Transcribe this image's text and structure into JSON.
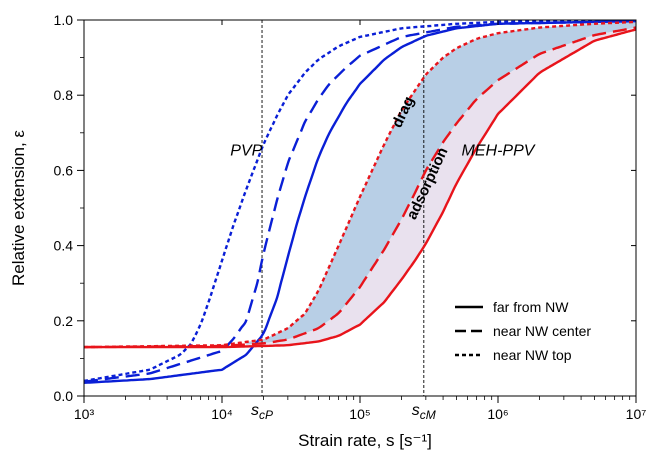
{
  "chart_data": {
    "type": "line",
    "xlabel": "Strain rate, s [s⁻¹]",
    "ylabel": "Relative extension, ε",
    "xscale": "log",
    "xlim": [
      1000,
      10000000
    ],
    "ylim": [
      0.0,
      1.0
    ],
    "x_ticks": [
      "10³",
      "10⁴",
      "10⁵",
      "10⁶",
      "10⁷"
    ],
    "y_ticks": [
      "0.0",
      "0.2",
      "0.4",
      "0.6",
      "0.8",
      "1.0"
    ],
    "grid": false,
    "legend_placement": "bottom-right",
    "legend": [
      {
        "label": "far from NW",
        "dash": "solid"
      },
      {
        "label": "near NW center",
        "dash": "dashed"
      },
      {
        "label": "near NW top",
        "dash": "dotted"
      }
    ],
    "region_labels": [
      {
        "text": "PVP",
        "x": 15000,
        "y": 0.64
      },
      {
        "text": "MEH-PPV",
        "x": 1000000,
        "y": 0.64
      }
    ],
    "band_labels": [
      {
        "text": "drag",
        "x": 220000,
        "y": 0.75
      },
      {
        "text": "adsorption",
        "x": 330000,
        "y": 0.56
      }
    ],
    "vertical_markers": [
      {
        "label": "s_cP",
        "base": "s",
        "sub": "cP",
        "x": 19500
      },
      {
        "label": "s_cM",
        "base": "s",
        "sub": "cM",
        "x": 290000
      }
    ],
    "colors": {
      "PVP": "#0a1fd6",
      "MEH-PPV": "#e8141b",
      "band_drag": "#b8cfe6",
      "band_adsorption": "#e9e1ee"
    },
    "series": [
      {
        "group": "PVP",
        "style": "solid",
        "color": "#0a1fd6",
        "x": [
          1000,
          3000,
          10000,
          15000,
          20000,
          25000,
          30000,
          35000,
          40000,
          50000,
          60000,
          80000,
          100000,
          150000,
          200000,
          300000,
          500000,
          1000000,
          10000000
        ],
        "y": [
          0.035,
          0.045,
          0.07,
          0.11,
          0.165,
          0.26,
          0.37,
          0.46,
          0.53,
          0.635,
          0.7,
          0.78,
          0.83,
          0.895,
          0.928,
          0.958,
          0.978,
          0.99,
          0.997
        ]
      },
      {
        "group": "PVP",
        "style": "dashed",
        "color": "#0a1fd6",
        "x": [
          1000,
          3000,
          10000,
          12000,
          15000,
          18000,
          20000,
          25000,
          30000,
          40000,
          50000,
          60000,
          80000,
          100000,
          200000,
          500000,
          1000000,
          10000000
        ],
        "y": [
          0.038,
          0.06,
          0.12,
          0.15,
          0.2,
          0.3,
          0.38,
          0.52,
          0.62,
          0.73,
          0.79,
          0.83,
          0.875,
          0.905,
          0.955,
          0.982,
          0.99,
          0.997
        ]
      },
      {
        "group": "PVP",
        "style": "dotted",
        "color": "#0a1fd6",
        "x": [
          1000,
          3000,
          5000,
          6000,
          7000,
          8000,
          10000,
          12000,
          15000,
          20000,
          25000,
          30000,
          40000,
          50000,
          70000,
          100000,
          200000,
          500000,
          1000000,
          10000000
        ],
        "y": [
          0.04,
          0.07,
          0.11,
          0.14,
          0.19,
          0.25,
          0.36,
          0.45,
          0.55,
          0.67,
          0.745,
          0.8,
          0.86,
          0.895,
          0.93,
          0.955,
          0.978,
          0.99,
          0.995,
          0.998
        ]
      },
      {
        "group": "MEH-PPV",
        "style": "solid",
        "color": "#e8141b",
        "x": [
          1000,
          10000,
          30000,
          50000,
          70000,
          100000,
          150000,
          200000,
          250000,
          300000,
          400000,
          500000,
          700000,
          1000000,
          2000000,
          5000000,
          10000000
        ],
        "y": [
          0.13,
          0.13,
          0.135,
          0.145,
          0.16,
          0.19,
          0.25,
          0.31,
          0.36,
          0.405,
          0.49,
          0.565,
          0.66,
          0.75,
          0.86,
          0.945,
          0.975
        ]
      },
      {
        "group": "MEH-PPV",
        "style": "dashed",
        "color": "#e8141b",
        "x": [
          1000,
          10000,
          20000,
          30000,
          50000,
          70000,
          100000,
          150000,
          200000,
          250000,
          300000,
          400000,
          500000,
          700000,
          1000000,
          2000000,
          5000000,
          10000000
        ],
        "y": [
          0.13,
          0.133,
          0.14,
          0.15,
          0.18,
          0.22,
          0.29,
          0.39,
          0.47,
          0.54,
          0.6,
          0.675,
          0.725,
          0.79,
          0.84,
          0.91,
          0.96,
          0.98
        ]
      },
      {
        "group": "MEH-PPV",
        "style": "dotted",
        "color": "#e8141b",
        "x": [
          1000,
          10000,
          20000,
          30000,
          40000,
          50000,
          70000,
          100000,
          150000,
          200000,
          300000,
          400000,
          500000,
          700000,
          1000000,
          2000000,
          5000000,
          10000000
        ],
        "y": [
          0.13,
          0.135,
          0.15,
          0.18,
          0.22,
          0.28,
          0.4,
          0.53,
          0.67,
          0.76,
          0.855,
          0.9,
          0.925,
          0.95,
          0.965,
          0.98,
          0.99,
          0.995
        ]
      }
    ]
  }
}
